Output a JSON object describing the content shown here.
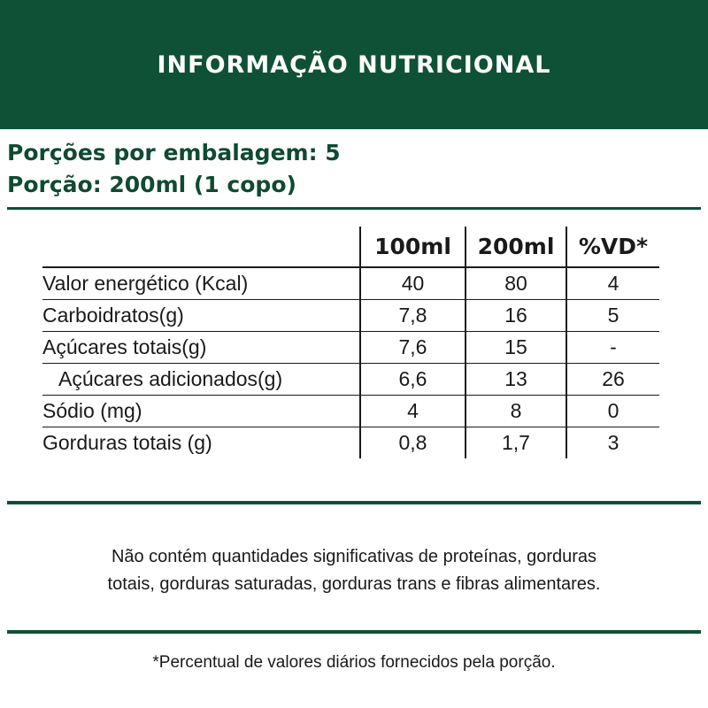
{
  "header": {
    "title": "INFORMAÇÃO NUTRICIONAL"
  },
  "serving": {
    "per_package": "Porções por embalagem: 5",
    "portion": "Porção: 200ml (1 copo)"
  },
  "table": {
    "columns": [
      "100ml",
      "200ml",
      "%VD*"
    ],
    "rows": [
      {
        "label": "Valor energético (Kcal)",
        "values": [
          "40",
          "80",
          "4"
        ]
      },
      {
        "label": "Carboidratos(g)",
        "values": [
          "7,8",
          "16",
          "5"
        ]
      },
      {
        "label": "Açúcares totais(g)",
        "values": [
          "7,6",
          "15",
          "-"
        ]
      },
      {
        "label": "Açúcares adicionados(g)",
        "values": [
          "6,6",
          "13",
          "26"
        ]
      },
      {
        "label": "Sódio (mg)",
        "values": [
          "4",
          "8",
          "0"
        ]
      },
      {
        "label": "Gorduras totais (g)",
        "values": [
          "0,8",
          "1,7",
          "3"
        ]
      }
    ]
  },
  "note": {
    "line1": "Não contém quantidades significativas de proteínas, gorduras",
    "line2": "totais, gorduras saturadas, gorduras trans e fibras alimentares."
  },
  "footnote": "*Percentual de valores diários fornecidos pela porção.",
  "colors": {
    "brand_green": "#0f5136",
    "text": "#1a1a1a"
  }
}
